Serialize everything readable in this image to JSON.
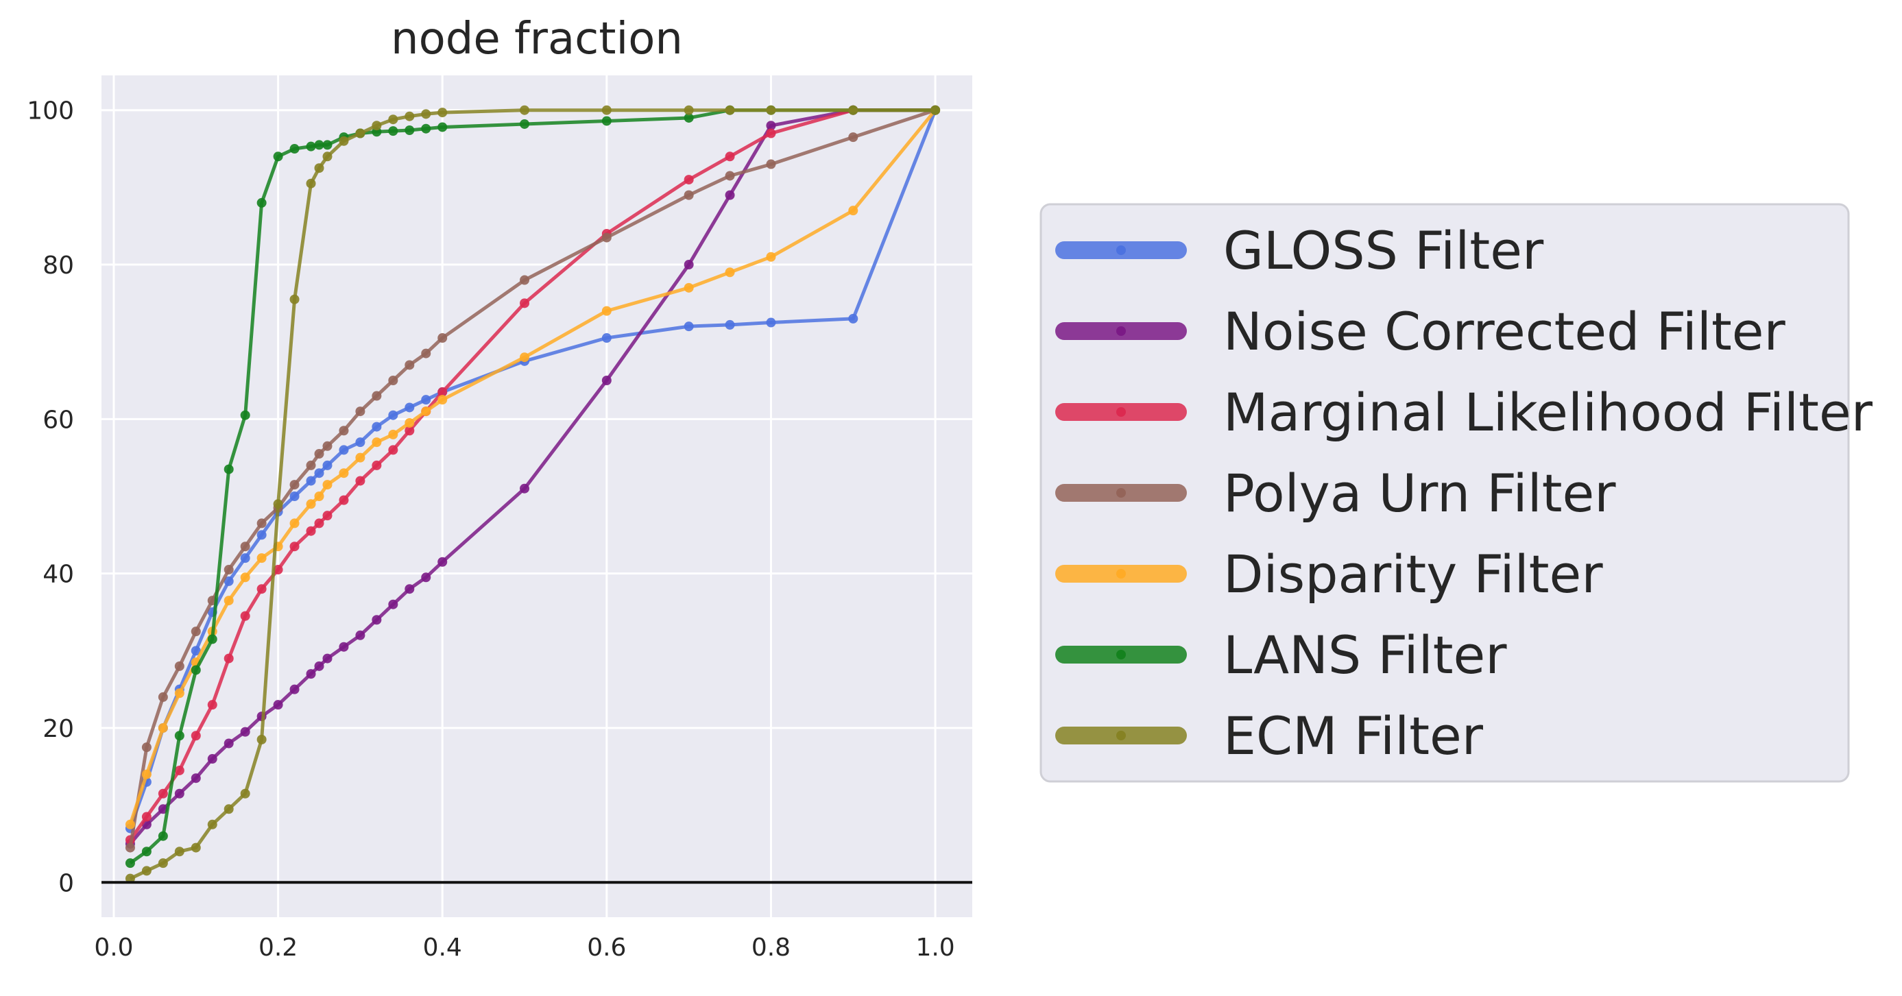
{
  "chart_data": {
    "type": "line",
    "title": "node fraction",
    "xlabel": "",
    "ylabel": "",
    "xlim": [
      -0.015,
      1.045
    ],
    "ylim": [
      -4.5,
      104.5
    ],
    "xticks": [
      "0.0",
      "0.2",
      "0.4",
      "0.6",
      "0.8",
      "1.0"
    ],
    "yticks": [
      "0",
      "20",
      "40",
      "60",
      "80",
      "100"
    ],
    "grid": true,
    "legend_position": "right",
    "series": [
      {
        "name": "GLOSS Filter",
        "color": "#4c72e0",
        "x": [
          0.02,
          0.04,
          0.06,
          0.08,
          0.1,
          0.12,
          0.14,
          0.16,
          0.18,
          0.2,
          0.22,
          0.24,
          0.25,
          0.26,
          0.28,
          0.3,
          0.32,
          0.34,
          0.36,
          0.38,
          0.4,
          0.5,
          0.6,
          0.7,
          0.75,
          0.8,
          0.9,
          1.0
        ],
        "y": [
          7,
          13,
          20,
          25,
          30,
          35,
          39,
          42,
          45,
          48,
          50,
          52,
          53,
          54,
          56,
          57,
          59,
          60.5,
          61.5,
          62.5,
          63.5,
          67.5,
          70.5,
          72,
          72.2,
          72.5,
          73,
          100
        ]
      },
      {
        "name": "Noise Corrected Filter",
        "color": "#7b1a86",
        "x": [
          0.02,
          0.04,
          0.06,
          0.08,
          0.1,
          0.12,
          0.14,
          0.16,
          0.18,
          0.2,
          0.22,
          0.24,
          0.25,
          0.26,
          0.28,
          0.3,
          0.32,
          0.34,
          0.36,
          0.38,
          0.4,
          0.5,
          0.6,
          0.7,
          0.75,
          0.8,
          0.9,
          1.0
        ],
        "y": [
          5,
          7.5,
          9.5,
          11.5,
          13.5,
          16,
          18,
          19.5,
          21.5,
          23,
          25,
          27,
          28,
          29,
          30.5,
          32,
          34,
          36,
          38,
          39.5,
          41.5,
          51,
          65,
          80,
          89,
          98,
          100,
          100
        ]
      },
      {
        "name": "Marginal Likelihood Filter",
        "color": "#dc2a50",
        "x": [
          0.02,
          0.04,
          0.06,
          0.08,
          0.1,
          0.12,
          0.14,
          0.16,
          0.18,
          0.2,
          0.22,
          0.24,
          0.25,
          0.26,
          0.28,
          0.3,
          0.32,
          0.34,
          0.36,
          0.38,
          0.4,
          0.5,
          0.6,
          0.7,
          0.75,
          0.8,
          0.9,
          1.0
        ],
        "y": [
          5.5,
          8.5,
          11.5,
          14.5,
          19,
          23,
          29,
          34.5,
          38,
          40.5,
          43.5,
          45.5,
          46.5,
          47.5,
          49.5,
          52,
          54,
          56,
          58.5,
          61,
          63.5,
          75,
          84,
          91,
          94,
          97,
          100,
          100
        ]
      },
      {
        "name": "Polya Urn Filter",
        "color": "#946459",
        "x": [
          0.02,
          0.04,
          0.06,
          0.08,
          0.1,
          0.12,
          0.14,
          0.16,
          0.18,
          0.2,
          0.22,
          0.24,
          0.25,
          0.26,
          0.28,
          0.3,
          0.32,
          0.34,
          0.36,
          0.38,
          0.4,
          0.5,
          0.6,
          0.7,
          0.75,
          0.8,
          0.9,
          1.0
        ],
        "y": [
          4.5,
          17.5,
          24,
          28,
          32.5,
          36.5,
          40.5,
          43.5,
          46.5,
          48.5,
          51.5,
          54,
          55.5,
          56.5,
          58.5,
          61,
          63,
          65,
          67,
          68.5,
          70.5,
          78,
          83.5,
          89,
          91.5,
          93,
          96.5,
          100
        ]
      },
      {
        "name": "Disparity Filter",
        "color": "#ffab26",
        "x": [
          0.02,
          0.04,
          0.06,
          0.08,
          0.1,
          0.12,
          0.14,
          0.16,
          0.18,
          0.2,
          0.22,
          0.24,
          0.25,
          0.26,
          0.28,
          0.3,
          0.32,
          0.34,
          0.36,
          0.38,
          0.4,
          0.5,
          0.6,
          0.7,
          0.75,
          0.8,
          0.9,
          1.0
        ],
        "y": [
          7.5,
          14,
          20,
          24.5,
          28.5,
          32.5,
          36.5,
          39.5,
          42,
          43.5,
          46.5,
          49,
          50,
          51.5,
          53,
          55,
          57,
          58,
          59.5,
          61,
          62.5,
          68,
          74,
          77,
          79,
          81,
          87,
          100
        ]
      },
      {
        "name": "LANS Filter",
        "color": "#14821e",
        "x": [
          0.02,
          0.04,
          0.06,
          0.08,
          0.1,
          0.12,
          0.14,
          0.16,
          0.18,
          0.2,
          0.22,
          0.24,
          0.25,
          0.26,
          0.28,
          0.3,
          0.32,
          0.34,
          0.36,
          0.38,
          0.4,
          0.5,
          0.6,
          0.7,
          0.75,
          0.8,
          0.9,
          1.0
        ],
        "y": [
          2.5,
          4,
          6,
          19,
          27.5,
          31.5,
          53.5,
          60.5,
          88,
          94,
          95,
          95.3,
          95.5,
          95.5,
          96.5,
          97,
          97.2,
          97.3,
          97.4,
          97.6,
          97.8,
          98.2,
          98.6,
          99,
          100,
          100,
          100,
          100
        ]
      },
      {
        "name": "ECM Filter",
        "color": "#868223",
        "x": [
          0.02,
          0.04,
          0.06,
          0.08,
          0.1,
          0.12,
          0.14,
          0.16,
          0.18,
          0.2,
          0.22,
          0.24,
          0.25,
          0.26,
          0.28,
          0.3,
          0.32,
          0.34,
          0.36,
          0.38,
          0.4,
          0.5,
          0.6,
          0.7,
          0.75,
          0.8,
          0.9,
          1.0
        ],
        "y": [
          0.5,
          1.5,
          2.5,
          4,
          4.5,
          7.5,
          9.5,
          11.5,
          18.5,
          49,
          75.5,
          90.5,
          92.5,
          94,
          96,
          97,
          98,
          98.8,
          99.2,
          99.5,
          99.7,
          100,
          100,
          100,
          100,
          100,
          100,
          100
        ]
      }
    ]
  }
}
